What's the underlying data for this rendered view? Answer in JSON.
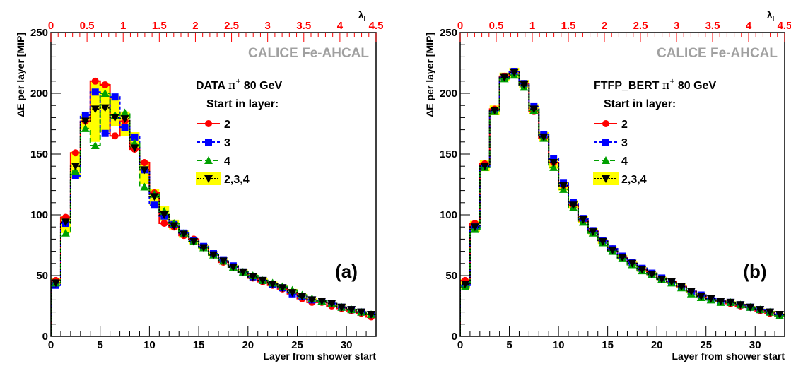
{
  "colors": {
    "red": "#ff0000",
    "blue": "#0000ff",
    "green": "#00a000",
    "black": "#000000",
    "band": "#ffff00",
    "collaboration": "#a0a0a0"
  },
  "chart_data": [
    {
      "type": "line",
      "panel_label": "(a)",
      "collaboration": "CALICE Fe-AHCAL",
      "header_prefix": "DATA",
      "header_particle": "π",
      "header_charge": "+",
      "header_energy": "80 GeV",
      "legend_title": "Start in layer:",
      "xlabel": "Layer from shower start",
      "ylabel": "ΔE per layer [MIP]",
      "top_axis_label": "λ",
      "top_axis_subscript": "I",
      "xlim": [
        0,
        33
      ],
      "ylim": [
        0,
        250
      ],
      "xticks": [
        0,
        5,
        10,
        15,
        20,
        25,
        30
      ],
      "yticks": [
        0,
        50,
        100,
        150,
        200,
        250
      ],
      "top_xlim": [
        0,
        4.5
      ],
      "top_xticks": [
        "0",
        "0.5",
        "1",
        "1.5",
        "2",
        "2.5",
        "3",
        "3.5",
        "4",
        "4.5"
      ],
      "x": [
        0,
        1,
        2,
        3,
        4,
        5,
        6,
        7,
        8,
        9,
        10,
        11,
        12,
        13,
        14,
        15,
        16,
        17,
        18,
        19,
        20,
        21,
        22,
        23,
        24,
        25,
        26,
        27,
        28,
        29,
        30,
        31,
        32
      ],
      "band": {
        "name": "2,3,4",
        "lower": [
          42,
          85,
          130,
          170,
          160,
          168,
          173,
          165,
          155,
          125,
          108,
          95,
          88,
          81,
          76,
          71,
          66,
          62,
          57,
          53,
          49,
          46,
          42,
          39,
          36,
          33,
          30,
          29,
          27,
          24,
          22,
          19,
          17
        ],
        "upper": [
          48,
          99,
          152,
          183,
          210,
          208,
          198,
          185,
          168,
          144,
          121,
          107,
          96,
          87,
          80,
          75,
          69,
          64,
          59,
          55,
          51,
          48,
          45,
          42,
          39,
          35,
          32,
          30,
          28,
          26,
          23,
          21,
          19
        ]
      },
      "series": [
        {
          "name": "2",
          "color": "red",
          "marker": "circle",
          "dash": "",
          "values": [
            46,
            98,
            151,
            177,
            210,
            207,
            165,
            177,
            154,
            143,
            118,
            93,
            90,
            83,
            80,
            73,
            67,
            61,
            57,
            53,
            48,
            45,
            42,
            39,
            35,
            31,
            28,
            28,
            25,
            23,
            21,
            19,
            16
          ]
        },
        {
          "name": "3",
          "color": "blue",
          "marker": "square",
          "dash": "4 3",
          "values": [
            42,
            93,
            132,
            182,
            201,
            167,
            197,
            172,
            164,
            137,
            108,
            99,
            92,
            85,
            79,
            74,
            68,
            63,
            58,
            53,
            49,
            46,
            43,
            40,
            35,
            33,
            30,
            29,
            27,
            24,
            22,
            20,
            18
          ]
        },
        {
          "name": "4",
          "color": "green",
          "marker": "triangle-up",
          "dash": "7 4",
          "values": [
            44,
            85,
            136,
            171,
            157,
            200,
            182,
            184,
            159,
            123,
            117,
            103,
            93,
            85,
            78,
            73,
            67,
            62,
            57,
            53,
            50,
            46,
            44,
            41,
            38,
            34,
            31,
            29,
            27,
            24,
            22,
            20,
            18
          ]
        },
        {
          "name": "2,3,4",
          "color": "black",
          "marker": "triangle-down",
          "dash": "2 2",
          "values": [
            44,
            94,
            140,
            177,
            187,
            188,
            180,
            179,
            155,
            137,
            115,
            100,
            91,
            84,
            78,
            73,
            67,
            62,
            57,
            53,
            49,
            46,
            43,
            40,
            36,
            33,
            30,
            29,
            27,
            24,
            22,
            20,
            18
          ]
        }
      ]
    },
    {
      "type": "line",
      "panel_label": "(b)",
      "collaboration": "CALICE Fe-AHCAL",
      "header_prefix": "FTFP_BERT",
      "header_particle": "π",
      "header_charge": "+",
      "header_energy": "80 GeV",
      "legend_title": "Start in layer:",
      "xlabel": "Layer from shower start",
      "ylabel": "ΔE per layer [MIP]",
      "top_axis_label": "λ",
      "top_axis_subscript": "I",
      "xlim": [
        0,
        33
      ],
      "ylim": [
        0,
        250
      ],
      "xticks": [
        0,
        5,
        10,
        15,
        20,
        25,
        30
      ],
      "yticks": [
        0,
        50,
        100,
        150,
        200,
        250
      ],
      "top_xlim": [
        0,
        4.5
      ],
      "top_xticks": [
        "0",
        "0.5",
        "1",
        "1.5",
        "2",
        "2.5",
        "3",
        "3.5",
        "4",
        "4.5"
      ],
      "x": [
        0,
        1,
        2,
        3,
        4,
        5,
        6,
        7,
        8,
        9,
        10,
        11,
        12,
        13,
        14,
        15,
        16,
        17,
        18,
        19,
        20,
        21,
        22,
        23,
        24,
        25,
        26,
        27,
        28,
        29,
        30,
        31,
        32
      ],
      "band": {
        "name": "2,3,4",
        "lower": [
          39,
          86,
          136,
          182,
          210,
          213,
          204,
          183,
          161,
          138,
          120,
          105,
          93,
          84,
          76,
          70,
          63,
          58,
          53,
          50,
          46,
          43,
          40,
          36,
          32,
          30,
          28,
          27,
          25,
          23,
          21,
          19,
          16
        ],
        "upper": [
          47,
          95,
          145,
          190,
          217,
          221,
          211,
          191,
          168,
          147,
          127,
          112,
          99,
          89,
          80,
          73,
          67,
          62,
          57,
          53,
          49,
          46,
          43,
          38,
          35,
          32,
          30,
          29,
          27,
          25,
          23,
          21,
          19
        ]
      },
      "series": [
        {
          "name": "2",
          "color": "red",
          "marker": "circle",
          "dash": "",
          "values": [
            46,
            93,
            142,
            187,
            214,
            218,
            208,
            185,
            163,
            143,
            124,
            108,
            95,
            87,
            79,
            72,
            65,
            60,
            55,
            51,
            47,
            45,
            41,
            37,
            34,
            31,
            29,
            27,
            25,
            24,
            21,
            19,
            17
          ]
        },
        {
          "name": "3",
          "color": "blue",
          "marker": "square",
          "dash": "4 3",
          "values": [
            42,
            90,
            140,
            186,
            213,
            218,
            208,
            189,
            166,
            146,
            126,
            110,
            97,
            87,
            79,
            72,
            66,
            61,
            56,
            52,
            48,
            45,
            41,
            37,
            34,
            31,
            29,
            28,
            26,
            24,
            22,
            20,
            18
          ]
        },
        {
          "name": "4",
          "color": "green",
          "marker": "triangle-up",
          "dash": "7 4",
          "values": [
            41,
            88,
            139,
            185,
            212,
            215,
            205,
            186,
            163,
            139,
            121,
            106,
            94,
            85,
            77,
            70,
            64,
            59,
            54,
            51,
            47,
            44,
            40,
            35,
            32,
            30,
            28,
            28,
            26,
            24,
            22,
            20,
            17
          ]
        },
        {
          "name": "2,3,4",
          "color": "black",
          "marker": "triangle-down",
          "dash": "2 2",
          "values": [
            43,
            90,
            140,
            186,
            213,
            217,
            207,
            187,
            164,
            143,
            124,
            108,
            96,
            86,
            78,
            71,
            65,
            60,
            55,
            51,
            47,
            45,
            41,
            37,
            33,
            31,
            29,
            28,
            26,
            24,
            22,
            20,
            18
          ]
        }
      ]
    }
  ]
}
